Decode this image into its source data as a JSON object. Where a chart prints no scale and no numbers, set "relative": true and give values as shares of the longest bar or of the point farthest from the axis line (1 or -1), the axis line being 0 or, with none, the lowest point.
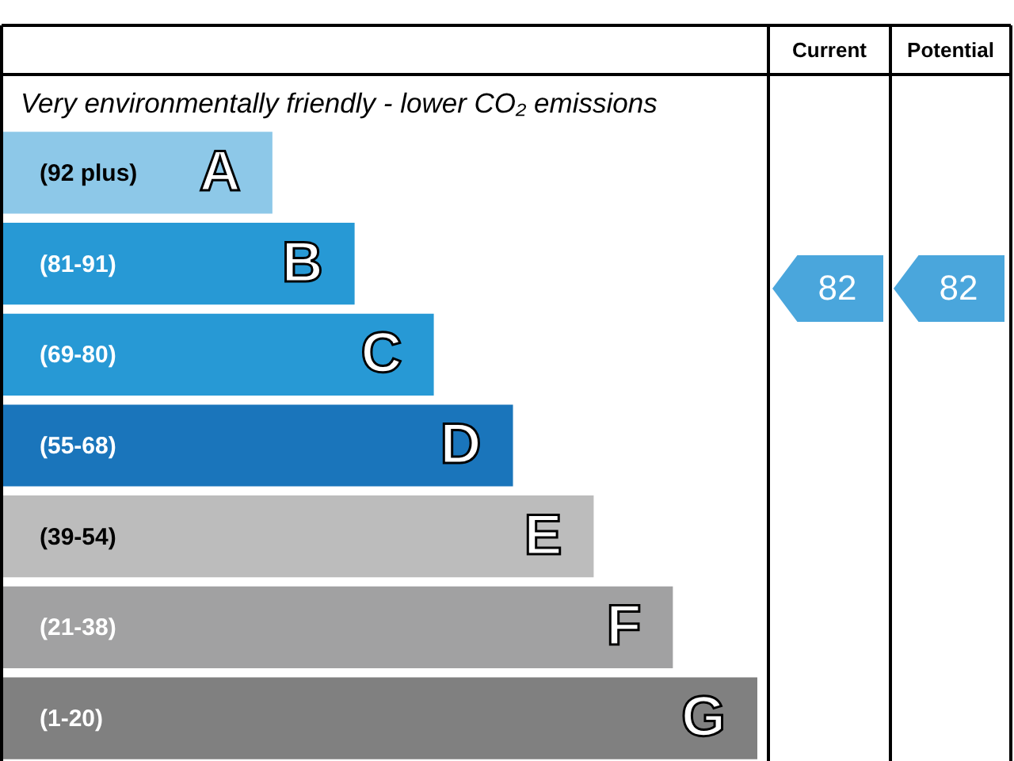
{
  "chart_data": {
    "type": "bar",
    "orientation": "horizontal",
    "relative": true,
    "subtitle": "Very environmentally friendly - lower CO₂ emissions",
    "categories": [
      "(92 plus)",
      "(81-91)",
      "(69-80)",
      "(55-68)",
      "(39-54)",
      "(21-38)",
      "(1-20)"
    ],
    "values": [
      0.357,
      0.466,
      0.571,
      0.676,
      0.783,
      0.888,
      1
    ],
    "colors": [
      "#8dc8e8",
      "#2799d5",
      "#2799d5",
      "#1a75bb",
      "#bcbcbc",
      "#a1a1a2",
      "#808080"
    ],
    "annotations": [
      {
        "text": "A",
        "x": 0.357,
        "y": "(92 plus)"
      },
      {
        "text": "B",
        "x": 0.466,
        "y": "(81-91)"
      },
      {
        "text": "C",
        "x": 0.571,
        "y": "(69-80)"
      },
      {
        "text": "D",
        "x": 0.676,
        "y": "(55-68)"
      },
      {
        "text": "E",
        "x": 0.783,
        "y": "(39-54)"
      },
      {
        "text": "F",
        "x": 0.888,
        "y": "(21-38)"
      },
      {
        "text": "G",
        "x": 1,
        "y": "(1-20)"
      },
      "Current",
      "Potential",
      "82",
      "82"
    ]
  }
}
